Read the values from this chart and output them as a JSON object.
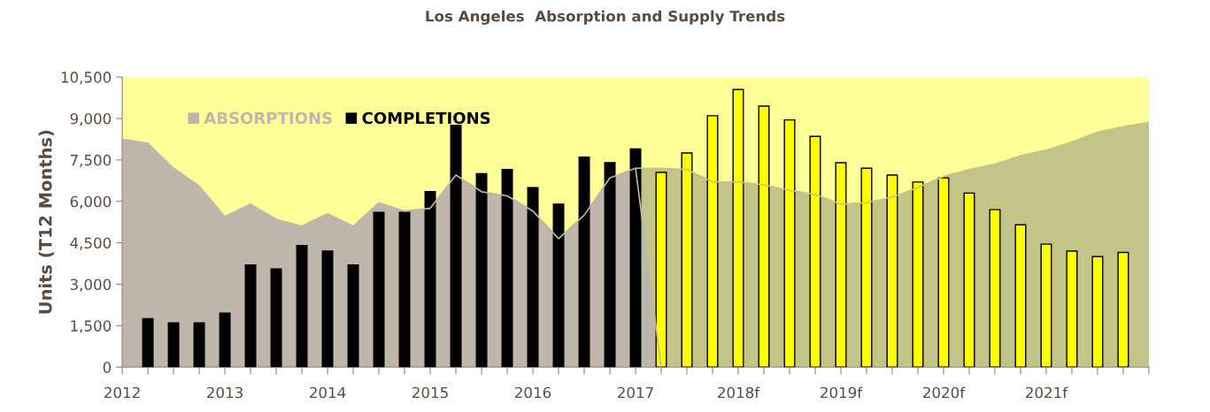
{
  "chart_data": {
    "type": "bar",
    "title": "Los Angeles  Absorption and Supply Trends",
    "ylabel": "Units (T12 Months)",
    "xlim": [
      2012,
      2022
    ],
    "xticks": [
      {
        "value": 2012,
        "label": "2012"
      },
      {
        "value": 2012.25,
        "label": null
      },
      {
        "value": 2012.5,
        "label": null
      },
      {
        "value": 2012.75,
        "label": null
      },
      {
        "value": 2013,
        "label": "2013"
      },
      {
        "value": 2013.25,
        "label": null
      },
      {
        "value": 2013.5,
        "label": null
      },
      {
        "value": 2013.75,
        "label": null
      },
      {
        "value": 2014,
        "label": "2014"
      },
      {
        "value": 2014.25,
        "label": null
      },
      {
        "value": 2014.5,
        "label": null
      },
      {
        "value": 2014.75,
        "label": null
      },
      {
        "value": 2015,
        "label": "2015"
      },
      {
        "value": 2015.25,
        "label": null
      },
      {
        "value": 2015.5,
        "label": null
      },
      {
        "value": 2015.75,
        "label": null
      },
      {
        "value": 2016,
        "label": "2016"
      },
      {
        "value": 2016.25,
        "label": null
      },
      {
        "value": 2016.5,
        "label": null
      },
      {
        "value": 2016.75,
        "label": null
      },
      {
        "value": 2017,
        "label": "2017"
      },
      {
        "value": 2017.25,
        "label": null
      },
      {
        "value": 2017.5,
        "label": null
      },
      {
        "value": 2017.75,
        "label": null
      },
      {
        "value": 2018,
        "label": "2018f"
      },
      {
        "value": 2018.25,
        "label": null
      },
      {
        "value": 2018.5,
        "label": null
      },
      {
        "value": 2018.75,
        "label": null
      },
      {
        "value": 2019,
        "label": "2019f"
      },
      {
        "value": 2019.25,
        "label": null
      },
      {
        "value": 2019.5,
        "label": null
      },
      {
        "value": 2019.75,
        "label": null
      },
      {
        "value": 2020,
        "label": "2020f"
      },
      {
        "value": 2020.25,
        "label": null
      },
      {
        "value": 2020.5,
        "label": null
      },
      {
        "value": 2020.75,
        "label": null
      },
      {
        "value": 2021,
        "label": "2021f"
      },
      {
        "value": 2021.25,
        "label": null
      },
      {
        "value": 2021.5,
        "label": null
      },
      {
        "value": 2021.75,
        "label": null
      },
      {
        "value": 2022,
        "label": null
      }
    ],
    "ylim": [
      0,
      10500
    ],
    "yticks": [
      0,
      {
        "value": 1500,
        "label": "1,500"
      },
      {
        "value": 3000,
        "label": "3,000"
      },
      {
        "value": 4500,
        "label": "4,500"
      },
      {
        "value": 6000,
        "label": "6,000"
      },
      {
        "value": 7500,
        "label": "7,500"
      },
      {
        "value": 9000,
        "label": "9,000"
      },
      {
        "value": 10500,
        "label": "10,500"
      }
    ],
    "grid": false,
    "legend": "top left",
    "series": [
      {
        "type": "area",
        "color": "#c3c487",
        "x": [
          2017,
          2017.25,
          2017.5,
          2017.75,
          2018,
          2018.25,
          2018.5,
          2018.75,
          2019,
          2019.25,
          2019.5,
          2019.75,
          2020,
          2020.25,
          2020.5,
          2020.75,
          2021,
          2021.25,
          2021.5,
          2021.75,
          2022
        ],
        "values": [
          7200,
          7200,
          7150,
          6700,
          6700,
          6600,
          6400,
          6250,
          5900,
          5950,
          6150,
          6500,
          6900,
          7150,
          7350,
          7650,
          7850,
          8150,
          8500,
          8700,
          8850
        ]
      },
      {
        "type": "area",
        "name": "ABSORPTIONS",
        "color": "#bfb6ac",
        "x": [
          2012,
          2012.25,
          2012.5,
          2012.75,
          2013,
          2013.25,
          2013.5,
          2013.75,
          2014,
          2014.25,
          2014.5,
          2014.75,
          2015,
          2015.25,
          2015.5,
          2015.75,
          2016,
          2016.25,
          2016.5,
          2016.75,
          2017,
          2017.25
        ],
        "values": [
          8250,
          8100,
          7200,
          6550,
          5450,
          5900,
          5350,
          5100,
          5550,
          5100,
          5950,
          5650,
          5750,
          6950,
          6350,
          6200,
          5650,
          4650,
          5500,
          6850,
          7200,
          0
        ]
      },
      {
        "name": "COMPLETIONS",
        "color": "#000000",
        "x": [
          2012.25,
          2012.5,
          2012.75,
          2013,
          2013.25,
          2013.5,
          2013.75,
          2014,
          2014.25,
          2014.5,
          2014.75,
          2015,
          2015.25,
          2015.5,
          2015.75,
          2016,
          2016.25,
          2016.5,
          2016.75,
          2017
        ],
        "values": [
          1750,
          1600,
          1600,
          1950,
          3700,
          3550,
          4400,
          4200,
          3700,
          5600,
          5600,
          6350,
          8750,
          7000,
          7150,
          6500,
          5900,
          7600,
          7400,
          7900
        ]
      },
      {
        "color": "#ffff00",
        "x": [
          2017.25,
          2017.5,
          2017.75,
          2018,
          2018.25,
          2018.5,
          2018.75,
          2019,
          2019.25,
          2019.5,
          2019.75,
          2020,
          2020.25,
          2020.5,
          2020.75,
          2021,
          2021.25,
          2021.5,
          2021.75
        ],
        "values": [
          7050,
          7750,
          9100,
          10050,
          9450,
          8950,
          8350,
          7400,
          7200,
          6950,
          6700,
          6850,
          6300,
          5700,
          5150,
          4450,
          4200,
          4000,
          4150
        ]
      }
    ]
  }
}
